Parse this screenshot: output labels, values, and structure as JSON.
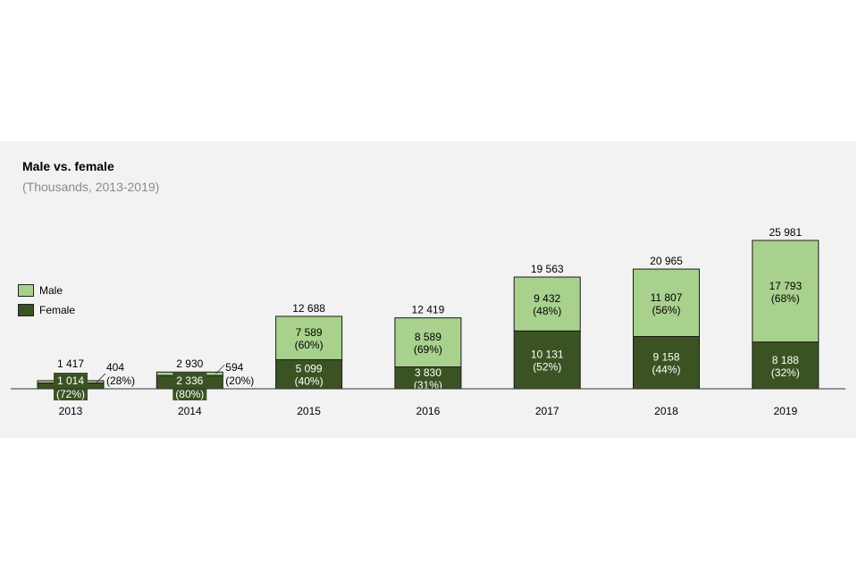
{
  "chart_data": {
    "type": "bar",
    "stacked": true,
    "title": "Male vs. female",
    "subtitle": "(Thousands, 2013-2019)",
    "categories": [
      "2013",
      "2014",
      "2015",
      "2016",
      "2017",
      "2018",
      "2019"
    ],
    "series": [
      {
        "name": "Female",
        "color": "#3b5323",
        "values": [
          1014,
          2336,
          5099,
          3830,
          10131,
          9158,
          8188
        ],
        "labels": [
          "1 014",
          "2 336",
          "5 099",
          "3 830",
          "10 131",
          "9 158",
          "8 188"
        ],
        "percents": [
          "(72%)",
          "(80%)",
          "(40%)",
          "(31%)",
          "(52%)",
          "(44%)",
          "(32%)"
        ]
      },
      {
        "name": "Male",
        "color": "#a9d18e",
        "values": [
          404,
          594,
          7589,
          8589,
          9432,
          11807,
          17793
        ],
        "labels": [
          "404",
          "594",
          "7 589",
          "8 589",
          "9 432",
          "11 807",
          "17 793"
        ],
        "percents": [
          "(28%)",
          "(20%)",
          "(60%)",
          "(69%)",
          "(48%)",
          "(56%)",
          "(68%)"
        ]
      }
    ],
    "totals": [
      1417,
      2930,
      12688,
      12419,
      19563,
      20965,
      25981
    ],
    "total_labels": [
      "1 417",
      "2 930",
      "12 688",
      "12 419",
      "19 563",
      "20 965",
      "25 981"
    ],
    "legend": {
      "position": "left",
      "entries": [
        "Male",
        "Female"
      ]
    },
    "ylim": [
      0,
      25981
    ],
    "grid": false,
    "y_axis_visible": false
  }
}
